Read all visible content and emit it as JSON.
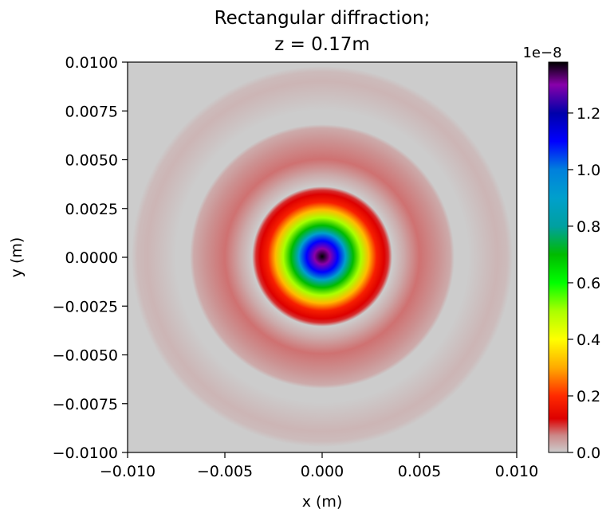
{
  "chart_data": {
    "type": "heatmap",
    "title_line1": "Rectangular diffraction;",
    "title_line2": "z = 0.17m",
    "xlabel": "x (m)",
    "ylabel": "y (m)",
    "xlim": [
      -0.01,
      0.01
    ],
    "ylim": [
      -0.01,
      0.01
    ],
    "xticks": [
      "−0.010",
      "−0.005",
      "0.000",
      "0.005",
      "0.010"
    ],
    "xtick_values": [
      -0.01,
      -0.005,
      0.0,
      0.005,
      0.01
    ],
    "yticks": [
      "0.0100",
      "0.0075",
      "0.0050",
      "0.0025",
      "0.0000",
      "−0.0025",
      "−0.0050",
      "−0.0075",
      "−0.0100"
    ],
    "ytick_values": [
      0.01,
      0.0075,
      0.005,
      0.0025,
      0.0,
      -0.0025,
      -0.005,
      -0.0075,
      -0.01
    ],
    "colorbar": {
      "offset_label": "1e−8",
      "range": [
        0.0,
        1.38
      ],
      "ticks": [
        "0.0",
        "0.2",
        "0.4",
        "0.6",
        "0.8",
        "1.0",
        "1.2"
      ],
      "tick_values": [
        0.0,
        0.2,
        0.4,
        0.6,
        0.8,
        1.0,
        1.2
      ],
      "colormap": "nipy_spectral-like, light grey at zero",
      "colormap_stops": [
        {
          "v": 0.0,
          "color": "#cccccc"
        },
        {
          "v": 0.06,
          "color": "#cc8888"
        },
        {
          "v": 0.12,
          "color": "#dd0000"
        },
        {
          "v": 0.2,
          "color": "#ff2a00"
        },
        {
          "v": 0.3,
          "color": "#ffaa00"
        },
        {
          "v": 0.4,
          "color": "#ffff00"
        },
        {
          "v": 0.5,
          "color": "#aaff00"
        },
        {
          "v": 0.6,
          "color": "#00ff00"
        },
        {
          "v": 0.7,
          "color": "#00bb00"
        },
        {
          "v": 0.8,
          "color": "#00a0a0"
        },
        {
          "v": 0.9,
          "color": "#00a0cc"
        },
        {
          "v": 1.0,
          "color": "#0080dd"
        },
        {
          "v": 1.1,
          "color": "#0000ff"
        },
        {
          "v": 1.2,
          "color": "#0000aa"
        },
        {
          "v": 1.3,
          "color": "#8800aa"
        },
        {
          "v": 1.38,
          "color": "#000000"
        }
      ]
    },
    "pattern": "radially symmetric intensity: central peak 1.38e-8 at origin decreasing through colour bands to about r=0.0035 m, faint red ring r≈0.004–0.0068 m, faint pink ring r≈0.0086–0.0095 m",
    "radial_profile": {
      "r": [
        0.0,
        0.0004,
        0.0008,
        0.0012,
        0.0016,
        0.002,
        0.0024,
        0.0028,
        0.0032,
        0.0034,
        0.0036,
        0.0042,
        0.005,
        0.006,
        0.0066,
        0.0068,
        0.0075,
        0.0086,
        0.009,
        0.0095,
        0.0098
      ],
      "value": [
        1.38,
        1.3,
        1.1,
        0.9,
        0.7,
        0.5,
        0.32,
        0.18,
        0.12,
        0.1,
        0.0,
        0.03,
        0.07,
        0.05,
        0.03,
        0.0,
        0.0,
        0.015,
        0.02,
        0.015,
        0.0
      ]
    }
  }
}
